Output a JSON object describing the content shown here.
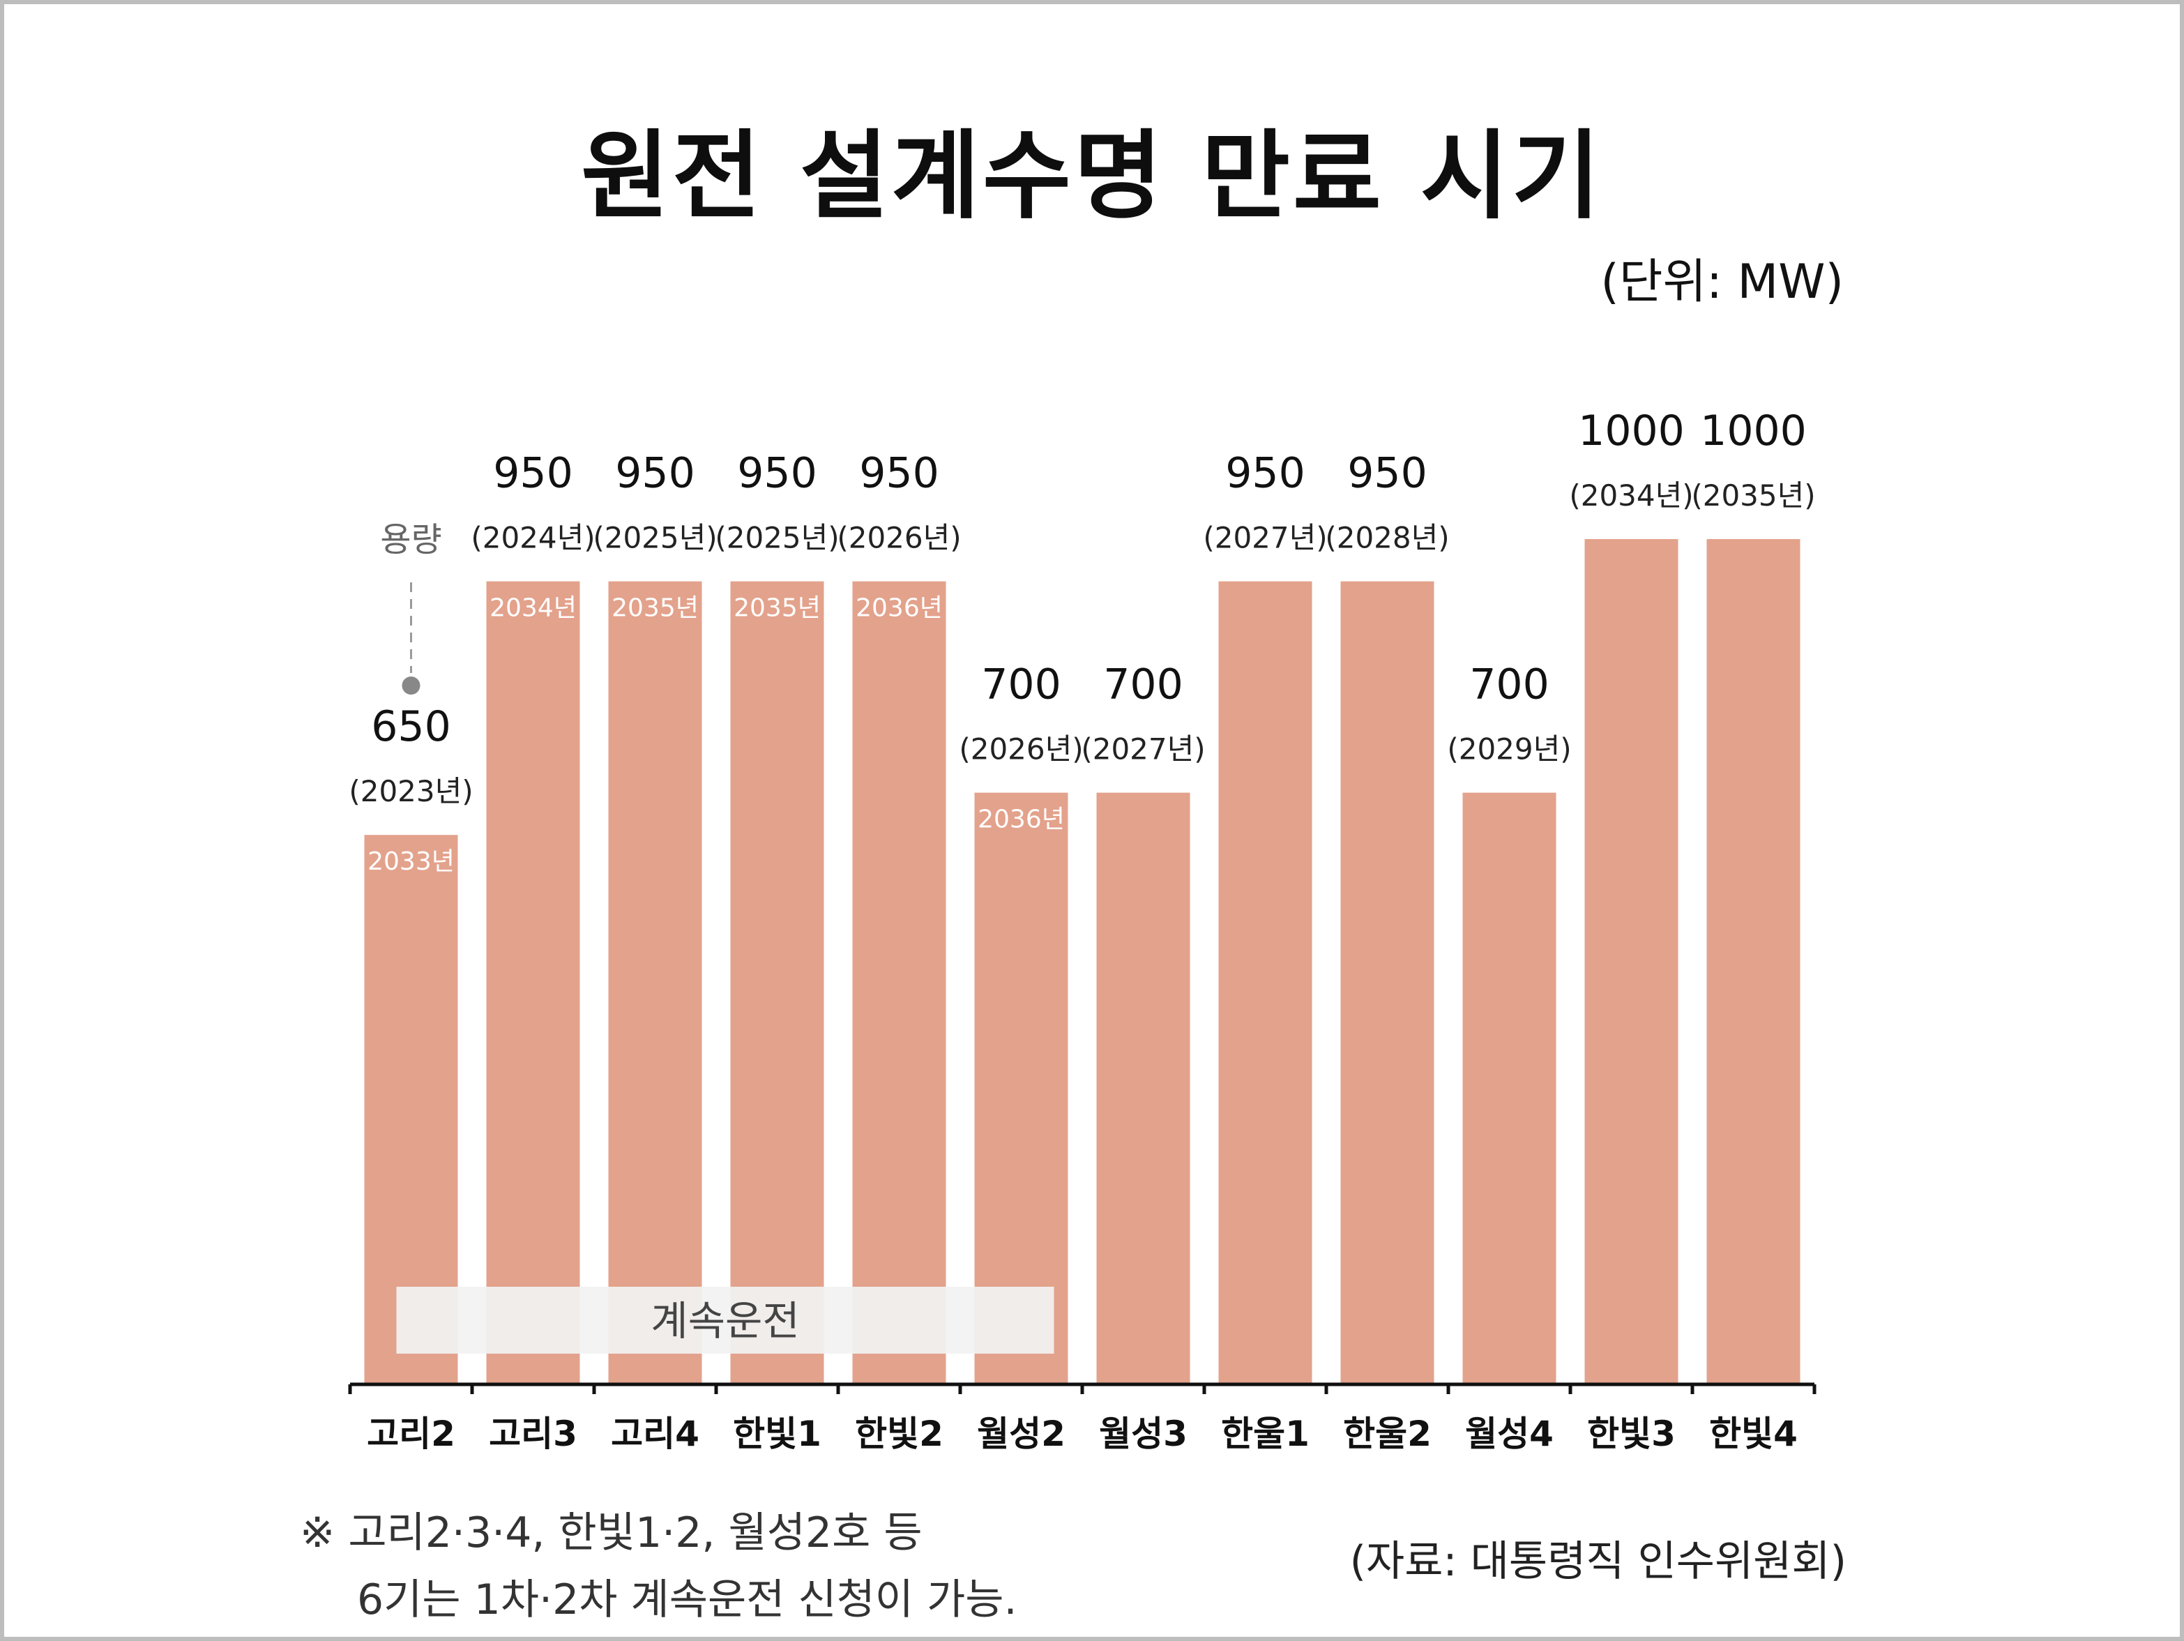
{
  "title": "원전 설계수명 만료 시기",
  "unit_label": "(단위: MW)",
  "capacity_marker_label": "용량",
  "continued_operation_label": "계속운전",
  "footnote": {
    "line1": "※ 고리2·3·4, 한빛1·2, 월성2호 등",
    "line2": "6기는 1차·2차 계속운전 신청이 가능."
  },
  "source": "(자료: 대통령직 인수위원회)",
  "colors": {
    "bar": "#e3a28c",
    "bar_inner_text": "#ffffff",
    "band": "#f2f2f2",
    "axis": "#111111",
    "marker": "#888888"
  },
  "chart_data": {
    "type": "bar",
    "categories": [
      "고리2",
      "고리3",
      "고리4",
      "한빛1",
      "한빛2",
      "월성2",
      "월성3",
      "한울1",
      "한울2",
      "월성4",
      "한빛3",
      "한빛4"
    ],
    "values": [
      650,
      950,
      950,
      950,
      950,
      700,
      700,
      950,
      950,
      700,
      1000,
      1000
    ],
    "value_labels": [
      "650",
      "950",
      "950",
      "950",
      "950",
      "700",
      "700",
      "950",
      "950",
      "700",
      "1000",
      "1000"
    ],
    "year_labels": [
      "(2023년)",
      "(2024년)",
      "(2025년)",
      "(2025년)",
      "(2026년)",
      "(2026년)",
      "(2027년)",
      "(2027년)",
      "(2028년)",
      "(2029년)",
      "(2034년)",
      "(2035년)"
    ],
    "extended_year_labels": [
      "2033년",
      "2034년",
      "2035년",
      "2035년",
      "2036년",
      "2036년",
      "",
      "",
      "",
      "",
      "",
      ""
    ],
    "ylim": [
      0,
      1000
    ]
  }
}
